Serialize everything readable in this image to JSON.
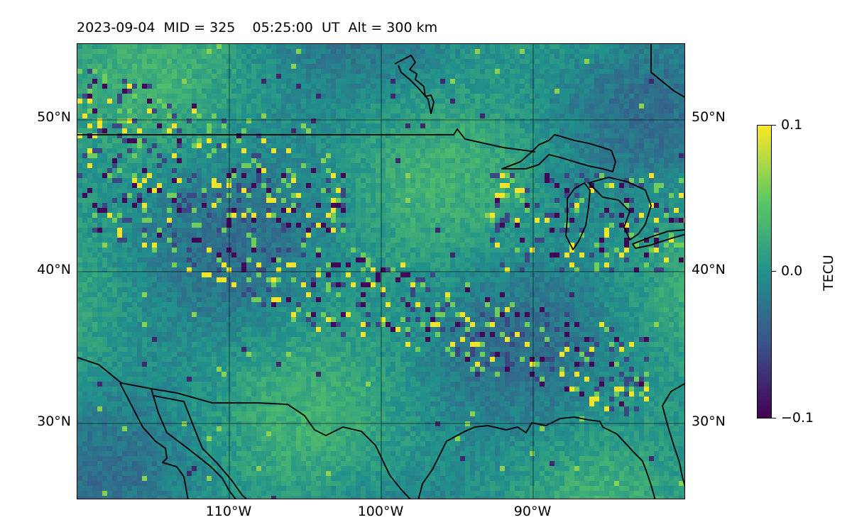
{
  "title": "2023-09-04  MID = 325    05:25:00  UT  Alt = 300 km",
  "map": {
    "lon_range": [
      -120,
      -80
    ],
    "lat_range": [
      25,
      55
    ],
    "gridlines": true,
    "lat_labels": [
      "50°N",
      "40°N",
      "30°N"
    ],
    "lon_labels": [
      "110°W",
      "100°W",
      "90°W"
    ],
    "background_colormap": "viridis"
  },
  "colorbar": {
    "label": "TECU",
    "vmin": -0.1,
    "vmax": 0.1,
    "tick_labels": [
      "0.1",
      "0.0",
      "−0.1"
    ],
    "colors": [
      "#440154",
      "#3b528b",
      "#21918c",
      "#5ec962",
      "#fde725"
    ]
  },
  "chart_data": {
    "type": "heatmap",
    "title": "2023-09-04  MID = 325    05:25:00  UT  Alt = 300 km",
    "colorbar_label": "TECU",
    "value_range": [
      -0.1,
      0.1
    ],
    "x_ticks": [
      "110°W",
      "100°W",
      "90°W"
    ],
    "y_ticks": [
      "50°N",
      "40°N",
      "30°N"
    ]
  }
}
